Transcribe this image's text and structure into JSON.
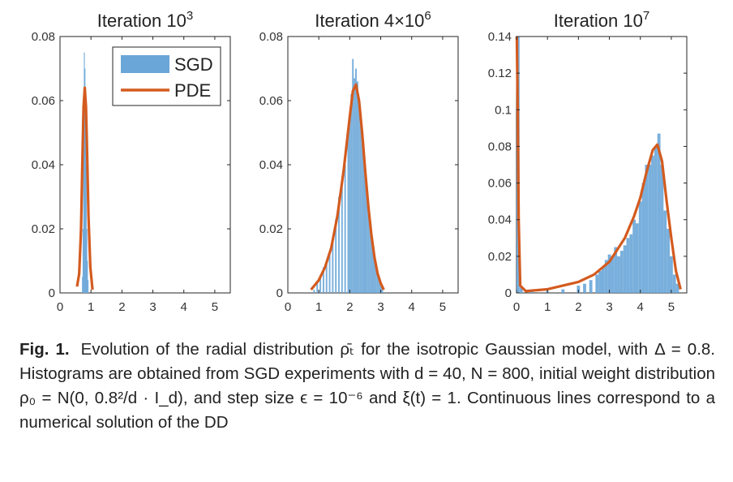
{
  "chart_data": [
    {
      "type": "bar+line",
      "title_prefix": "Iteration 10",
      "title_exp": "3",
      "xlim": [
        0,
        5.5
      ],
      "ylim": [
        0,
        0.08
      ],
      "xticks": [
        "0",
        "1",
        "2",
        "3",
        "4",
        "5"
      ],
      "yticks": [
        "0",
        "0.02",
        "0.04",
        "0.06",
        "0.08"
      ],
      "ytick_values": [
        0,
        0.02,
        0.04,
        0.06,
        0.08
      ],
      "legend": {
        "position": "top-right",
        "entries": [
          "SGD",
          "PDE"
        ]
      },
      "series": [
        {
          "kind": "histogram",
          "legend": "SGD",
          "color": "#6aa6d8",
          "bins": [
            [
              0.72,
              0.005
            ],
            [
              0.74,
              0.02
            ],
            [
              0.76,
              0.045
            ],
            [
              0.78,
              0.075
            ],
            [
              0.8,
              0.07
            ],
            [
              0.82,
              0.06
            ],
            [
              0.84,
              0.04
            ],
            [
              0.86,
              0.02
            ],
            [
              0.88,
              0.01
            ],
            [
              0.9,
              0.004
            ]
          ]
        },
        {
          "kind": "line",
          "legend": "PDE",
          "color": "#d35b1f",
          "points": [
            [
              0.55,
              0.002
            ],
            [
              0.62,
              0.006
            ],
            [
              0.68,
              0.02
            ],
            [
              0.72,
              0.04
            ],
            [
              0.76,
              0.058
            ],
            [
              0.8,
              0.064
            ],
            [
              0.84,
              0.058
            ],
            [
              0.88,
              0.042
            ],
            [
              0.92,
              0.024
            ],
            [
              0.98,
              0.008
            ],
            [
              1.05,
              0.001
            ]
          ]
        }
      ]
    },
    {
      "type": "bar+line",
      "title_prefix": "Iteration 4×10",
      "title_exp": "6",
      "xlim": [
        0,
        5.5
      ],
      "ylim": [
        0,
        0.08
      ],
      "xticks": [
        "0",
        "1",
        "2",
        "3",
        "4",
        "5"
      ],
      "yticks": [
        "0",
        "0.02",
        "0.04",
        "0.06",
        "0.08"
      ],
      "ytick_values": [
        0,
        0.02,
        0.04,
        0.06,
        0.08
      ],
      "series": [
        {
          "kind": "histogram",
          "legend": "SGD",
          "color": "#6aa6d8",
          "bins": [
            [
              0.85,
              0.001
            ],
            [
              0.95,
              0.003
            ],
            [
              1.05,
              0.005
            ],
            [
              1.15,
              0.008
            ],
            [
              1.25,
              0.01
            ],
            [
              1.35,
              0.013
            ],
            [
              1.45,
              0.017
            ],
            [
              1.55,
              0.023
            ],
            [
              1.65,
              0.03
            ],
            [
              1.75,
              0.034
            ],
            [
              1.85,
              0.04
            ],
            [
              1.95,
              0.05
            ],
            [
              2.0,
              0.055
            ],
            [
              2.05,
              0.062
            ],
            [
              2.1,
              0.073
            ],
            [
              2.15,
              0.067
            ],
            [
              2.2,
              0.07
            ],
            [
              2.25,
              0.066
            ],
            [
              2.3,
              0.06
            ],
            [
              2.35,
              0.056
            ],
            [
              2.4,
              0.05
            ],
            [
              2.45,
              0.043
            ],
            [
              2.5,
              0.037
            ],
            [
              2.55,
              0.032
            ],
            [
              2.6,
              0.028
            ],
            [
              2.65,
              0.022
            ],
            [
              2.7,
              0.018
            ],
            [
              2.75,
              0.014
            ],
            [
              2.8,
              0.011
            ],
            [
              2.85,
              0.008
            ],
            [
              2.9,
              0.006
            ],
            [
              2.95,
              0.004
            ],
            [
              3.0,
              0.003
            ],
            [
              3.05,
              0.002
            ]
          ]
        },
        {
          "kind": "line",
          "legend": "PDE",
          "color": "#d35b1f",
          "points": [
            [
              0.75,
              0.001
            ],
            [
              1.0,
              0.004
            ],
            [
              1.2,
              0.008
            ],
            [
              1.4,
              0.014
            ],
            [
              1.6,
              0.024
            ],
            [
              1.8,
              0.038
            ],
            [
              2.0,
              0.055
            ],
            [
              2.1,
              0.063
            ],
            [
              2.2,
              0.065
            ],
            [
              2.3,
              0.06
            ],
            [
              2.4,
              0.05
            ],
            [
              2.5,
              0.038
            ],
            [
              2.6,
              0.027
            ],
            [
              2.7,
              0.018
            ],
            [
              2.8,
              0.011
            ],
            [
              2.9,
              0.006
            ],
            [
              3.0,
              0.003
            ],
            [
              3.1,
              0.001
            ]
          ]
        }
      ]
    },
    {
      "type": "bar+line",
      "title_prefix": "Iteration 10",
      "title_exp": "7",
      "xlim": [
        0,
        5.5
      ],
      "ylim": [
        0,
        0.14
      ],
      "xticks": [
        "0",
        "1",
        "2",
        "3",
        "4",
        "5"
      ],
      "yticks": [
        "0",
        "0.02",
        "0.04",
        "0.06",
        "0.08",
        "0.1",
        "0.12",
        "0.14"
      ],
      "ytick_values": [
        0,
        0.02,
        0.04,
        0.06,
        0.08,
        0.1,
        0.12,
        0.14
      ],
      "series": [
        {
          "kind": "histogram",
          "legend": "SGD",
          "color": "#6aa6d8",
          "bins": [
            [
              0.05,
              0.14
            ],
            [
              0.15,
              0.003
            ],
            [
              0.5,
              0.001
            ],
            [
              1.0,
              0.001
            ],
            [
              1.5,
              0.002
            ],
            [
              2.0,
              0.004
            ],
            [
              2.2,
              0.005
            ],
            [
              2.4,
              0.007
            ],
            [
              2.6,
              0.01
            ],
            [
              2.7,
              0.012
            ],
            [
              2.8,
              0.014
            ],
            [
              2.9,
              0.018
            ],
            [
              3.0,
              0.021
            ],
            [
              3.1,
              0.02
            ],
            [
              3.2,
              0.025
            ],
            [
              3.3,
              0.02
            ],
            [
              3.4,
              0.023
            ],
            [
              3.5,
              0.026
            ],
            [
              3.6,
              0.03
            ],
            [
              3.7,
              0.032
            ],
            [
              3.8,
              0.04
            ],
            [
              3.9,
              0.038
            ],
            [
              4.0,
              0.05
            ],
            [
              4.1,
              0.06
            ],
            [
              4.2,
              0.07
            ],
            [
              4.3,
              0.07
            ],
            [
              4.4,
              0.075
            ],
            [
              4.5,
              0.08
            ],
            [
              4.6,
              0.087
            ],
            [
              4.7,
              0.07
            ],
            [
              4.8,
              0.045
            ],
            [
              4.9,
              0.035
            ],
            [
              5.0,
              0.02
            ],
            [
              5.1,
              0.01
            ],
            [
              5.2,
              0.005
            ]
          ]
        },
        {
          "kind": "line",
          "legend": "PDE",
          "color": "#d35b1f",
          "points": [
            [
              0.01,
              0.14
            ],
            [
              0.04,
              0.1
            ],
            [
              0.07,
              0.04
            ],
            [
              0.12,
              0.004
            ],
            [
              0.3,
              0.001
            ],
            [
              1.0,
              0.002
            ],
            [
              1.5,
              0.004
            ],
            [
              2.0,
              0.006
            ],
            [
              2.5,
              0.01
            ],
            [
              3.0,
              0.017
            ],
            [
              3.5,
              0.03
            ],
            [
              3.8,
              0.042
            ],
            [
              4.0,
              0.052
            ],
            [
              4.2,
              0.066
            ],
            [
              4.4,
              0.078
            ],
            [
              4.55,
              0.081
            ],
            [
              4.7,
              0.072
            ],
            [
              4.85,
              0.05
            ],
            [
              5.0,
              0.03
            ],
            [
              5.15,
              0.012
            ],
            [
              5.3,
              0.002
            ]
          ]
        }
      ]
    }
  ],
  "caption": {
    "label": "Fig. 1.",
    "text": "Evolution of the radial distribution ρ̄ₜ for the isotropic Gaussian model, with Δ = 0.8. Histograms are obtained from SGD experiments with d = 40, N = 800, initial weight distribution ρ₀ = N(0, 0.8²/d · I_d), and step size ϵ = 10⁻⁶ and ξ(t) = 1. Continuous lines correspond to a numerical solution of the DD"
  }
}
